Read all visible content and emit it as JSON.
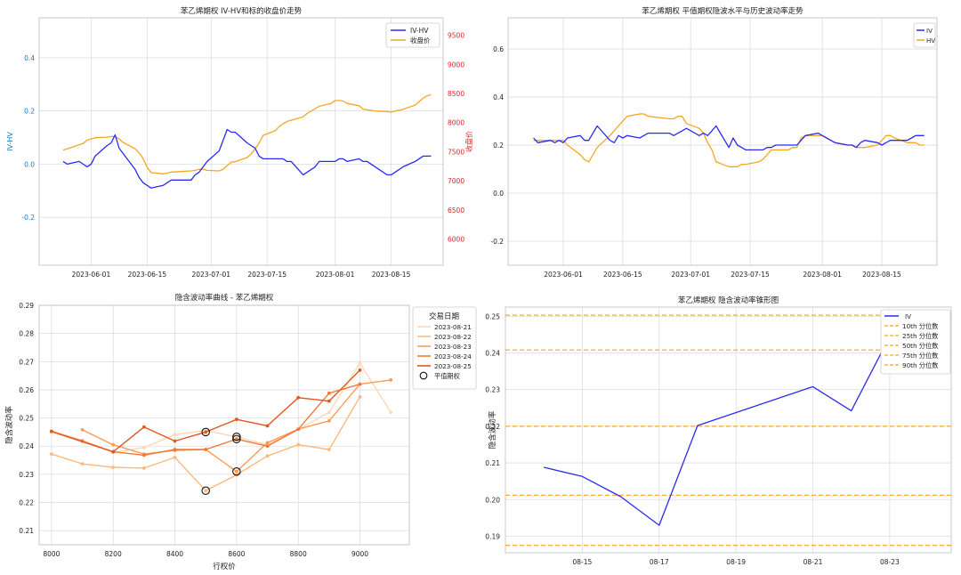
{
  "chart_data": [
    {
      "type": "line",
      "title": "苯乙烯期权 IV-HV和标的收盘价走势",
      "ylabel": "IV-HV",
      "y2label": "收盘价",
      "ylim": [
        -0.38,
        0.55
      ],
      "y2lim": [
        5550,
        9800
      ],
      "yticks": [
        "-0.2",
        "0.0",
        "0.2",
        "0.4"
      ],
      "y2ticks": [
        "6000",
        "6500",
        "7000",
        "7500",
        "8000",
        "8500",
        "9000",
        "9500"
      ],
      "xticks": [
        "2023-06-01",
        "2023-06-15",
        "2023-07-01",
        "2023-07-15",
        "2023-08-01",
        "2023-08-15"
      ],
      "grid": true,
      "legend": "top-right",
      "axis_colors": {
        "left": "#1f77b4",
        "right": "#d62728"
      },
      "series": [
        {
          "name": "IV-HV",
          "color": "#2b2bf0",
          "axis": "left",
          "x": [
            "2023-05-25",
            "2023-05-26",
            "2023-05-29",
            "2023-05-30",
            "2023-05-31",
            "2023-06-01",
            "2023-06-02",
            "2023-06-05",
            "2023-06-06",
            "2023-06-07",
            "2023-06-08",
            "2023-06-09",
            "2023-06-12",
            "2023-06-13",
            "2023-06-14",
            "2023-06-15",
            "2023-06-16",
            "2023-06-19",
            "2023-06-20",
            "2023-06-21",
            "2023-06-26",
            "2023-06-27",
            "2023-06-28",
            "2023-06-29",
            "2023-06-30",
            "2023-07-03",
            "2023-07-04",
            "2023-07-05",
            "2023-07-06",
            "2023-07-07",
            "2023-07-10",
            "2023-07-11",
            "2023-07-12",
            "2023-07-13",
            "2023-07-14",
            "2023-07-17",
            "2023-07-18",
            "2023-07-19",
            "2023-07-20",
            "2023-07-21",
            "2023-07-24",
            "2023-07-25",
            "2023-07-26",
            "2023-07-27",
            "2023-07-28",
            "2023-07-31",
            "2023-08-01",
            "2023-08-02",
            "2023-08-03",
            "2023-08-04",
            "2023-08-07",
            "2023-08-08",
            "2023-08-09",
            "2023-08-10",
            "2023-08-11",
            "2023-08-14",
            "2023-08-15",
            "2023-08-16",
            "2023-08-17",
            "2023-08-18",
            "2023-08-21",
            "2023-08-22",
            "2023-08-23",
            "2023-08-24",
            "2023-08-25"
          ],
          "values": [
            0.01,
            0.0,
            0.01,
            0.0,
            -0.01,
            0.0,
            0.03,
            0.07,
            0.08,
            0.11,
            0.06,
            0.04,
            -0.02,
            -0.05,
            -0.07,
            -0.08,
            -0.09,
            -0.08,
            -0.07,
            -0.06,
            -0.06,
            -0.04,
            -0.03,
            -0.01,
            0.01,
            0.05,
            0.09,
            0.13,
            0.12,
            0.12,
            0.08,
            0.07,
            0.06,
            0.03,
            0.02,
            0.02,
            0.02,
            0.02,
            0.01,
            0.01,
            -0.04,
            -0.03,
            -0.02,
            -0.01,
            0.01,
            0.01,
            0.01,
            0.02,
            0.02,
            0.01,
            0.02,
            0.01,
            0.01,
            0.0,
            -0.01,
            -0.04,
            -0.04,
            -0.03,
            -0.02,
            -0.01,
            0.01,
            0.02,
            0.03,
            0.03,
            0.03
          ]
        },
        {
          "name": "收盘价",
          "color": "#f5a623",
          "axis": "right",
          "x": [
            "2023-05-25",
            "2023-05-26",
            "2023-05-29",
            "2023-05-30",
            "2023-05-31",
            "2023-06-01",
            "2023-06-02",
            "2023-06-05",
            "2023-06-06",
            "2023-06-07",
            "2023-06-08",
            "2023-06-09",
            "2023-06-12",
            "2023-06-13",
            "2023-06-14",
            "2023-06-15",
            "2023-06-16",
            "2023-06-19",
            "2023-06-20",
            "2023-06-21",
            "2023-06-26",
            "2023-06-27",
            "2023-06-28",
            "2023-06-29",
            "2023-06-30",
            "2023-07-03",
            "2023-07-04",
            "2023-07-05",
            "2023-07-06",
            "2023-07-07",
            "2023-07-10",
            "2023-07-11",
            "2023-07-12",
            "2023-07-13",
            "2023-07-14",
            "2023-07-17",
            "2023-07-18",
            "2023-07-19",
            "2023-07-20",
            "2023-07-21",
            "2023-07-24",
            "2023-07-25",
            "2023-07-26",
            "2023-07-27",
            "2023-07-28",
            "2023-07-31",
            "2023-08-01",
            "2023-08-02",
            "2023-08-03",
            "2023-08-04",
            "2023-08-07",
            "2023-08-08",
            "2023-08-09",
            "2023-08-10",
            "2023-08-11",
            "2023-08-14",
            "2023-08-15",
            "2023-08-16",
            "2023-08-17",
            "2023-08-18",
            "2023-08-21",
            "2023-08-22",
            "2023-08-23",
            "2023-08-24",
            "2023-08-25"
          ],
          "values": [
            7530,
            7550,
            7620,
            7640,
            7700,
            7720,
            7740,
            7750,
            7760,
            7760,
            7720,
            7660,
            7550,
            7480,
            7380,
            7230,
            7140,
            7120,
            7130,
            7150,
            7170,
            7180,
            7200,
            7200,
            7180,
            7170,
            7200,
            7260,
            7320,
            7330,
            7400,
            7460,
            7550,
            7650,
            7780,
            7860,
            7930,
            7980,
            8020,
            8040,
            8100,
            8160,
            8200,
            8240,
            8280,
            8330,
            8380,
            8380,
            8370,
            8330,
            8290,
            8230,
            8220,
            8210,
            8200,
            8190,
            8180,
            8200,
            8210,
            8230,
            8300,
            8360,
            8420,
            8460,
            8480
          ]
        }
      ]
    },
    {
      "type": "line",
      "title": "苯乙烯期权 平值期权隐波水平与历史波动率走势",
      "ylim": [
        -0.3,
        0.73
      ],
      "yticks": [
        "-0.2",
        "0.0",
        "0.2",
        "0.4",
        "0.6"
      ],
      "xticks": [
        "2023-06-01",
        "2023-06-15",
        "2023-07-01",
        "2023-07-15",
        "2023-08-01",
        "2023-08-15"
      ],
      "grid": true,
      "legend": "top-right",
      "series": [
        {
          "name": "IV",
          "color": "#2b2bf0",
          "x": [
            "2023-05-25",
            "2023-05-26",
            "2023-05-29",
            "2023-05-30",
            "2023-05-31",
            "2023-06-01",
            "2023-06-02",
            "2023-06-05",
            "2023-06-06",
            "2023-06-07",
            "2023-06-08",
            "2023-06-09",
            "2023-06-12",
            "2023-06-13",
            "2023-06-14",
            "2023-06-15",
            "2023-06-16",
            "2023-06-19",
            "2023-06-20",
            "2023-06-21",
            "2023-06-26",
            "2023-06-27",
            "2023-06-28",
            "2023-06-29",
            "2023-06-30",
            "2023-07-03",
            "2023-07-04",
            "2023-07-05",
            "2023-07-06",
            "2023-07-07",
            "2023-07-10",
            "2023-07-11",
            "2023-07-12",
            "2023-07-13",
            "2023-07-14",
            "2023-07-17",
            "2023-07-18",
            "2023-07-19",
            "2023-07-20",
            "2023-07-21",
            "2023-07-24",
            "2023-07-25",
            "2023-07-26",
            "2023-07-27",
            "2023-07-28",
            "2023-07-31",
            "2023-08-01",
            "2023-08-02",
            "2023-08-03",
            "2023-08-04",
            "2023-08-07",
            "2023-08-08",
            "2023-08-09",
            "2023-08-10",
            "2023-08-11",
            "2023-08-14",
            "2023-08-15",
            "2023-08-16",
            "2023-08-17",
            "2023-08-18",
            "2023-08-21",
            "2023-08-22",
            "2023-08-23",
            "2023-08-24",
            "2023-08-25"
          ],
          "values": [
            0.23,
            0.21,
            0.22,
            0.21,
            0.22,
            0.21,
            0.23,
            0.24,
            0.22,
            0.22,
            0.25,
            0.28,
            0.22,
            0.21,
            0.24,
            0.23,
            0.24,
            0.23,
            0.24,
            0.25,
            0.25,
            0.24,
            0.25,
            0.26,
            0.27,
            0.24,
            0.25,
            0.24,
            0.26,
            0.28,
            0.19,
            0.23,
            0.2,
            0.19,
            0.18,
            0.18,
            0.18,
            0.19,
            0.19,
            0.2,
            0.2,
            0.2,
            0.2,
            0.22,
            0.24,
            0.25,
            0.24,
            0.23,
            0.22,
            0.21,
            0.2,
            0.2,
            0.19,
            0.21,
            0.22,
            0.21,
            0.2,
            0.21,
            0.22,
            0.22,
            0.22,
            0.23,
            0.24,
            0.24,
            0.24
          ]
        },
        {
          "name": "HV",
          "color": "#f5a623",
          "x": [
            "2023-05-25",
            "2023-05-26",
            "2023-05-29",
            "2023-05-30",
            "2023-05-31",
            "2023-06-01",
            "2023-06-02",
            "2023-06-05",
            "2023-06-06",
            "2023-06-07",
            "2023-06-08",
            "2023-06-09",
            "2023-06-12",
            "2023-06-13",
            "2023-06-14",
            "2023-06-15",
            "2023-06-16",
            "2023-06-19",
            "2023-06-20",
            "2023-06-21",
            "2023-06-26",
            "2023-06-27",
            "2023-06-28",
            "2023-06-29",
            "2023-06-30",
            "2023-07-03",
            "2023-07-04",
            "2023-07-05",
            "2023-07-06",
            "2023-07-07",
            "2023-07-10",
            "2023-07-11",
            "2023-07-12",
            "2023-07-13",
            "2023-07-14",
            "2023-07-17",
            "2023-07-18",
            "2023-07-19",
            "2023-07-20",
            "2023-07-21",
            "2023-07-24",
            "2023-07-25",
            "2023-07-26",
            "2023-07-27",
            "2023-07-28",
            "2023-07-31",
            "2023-08-01",
            "2023-08-02",
            "2023-08-03",
            "2023-08-04",
            "2023-08-07",
            "2023-08-08",
            "2023-08-09",
            "2023-08-10",
            "2023-08-11",
            "2023-08-14",
            "2023-08-15",
            "2023-08-16",
            "2023-08-17",
            "2023-08-18",
            "2023-08-21",
            "2023-08-22",
            "2023-08-23",
            "2023-08-24",
            "2023-08-25"
          ],
          "values": [
            0.22,
            0.22,
            0.22,
            0.22,
            0.22,
            0.22,
            0.2,
            0.16,
            0.14,
            0.13,
            0.16,
            0.19,
            0.24,
            0.26,
            0.28,
            0.3,
            0.32,
            0.33,
            0.33,
            0.32,
            0.31,
            0.31,
            0.32,
            0.32,
            0.29,
            0.27,
            0.25,
            0.21,
            0.18,
            0.13,
            0.11,
            0.11,
            0.11,
            0.12,
            0.12,
            0.13,
            0.14,
            0.16,
            0.18,
            0.18,
            0.18,
            0.19,
            0.19,
            0.23,
            0.24,
            0.24,
            0.24,
            0.23,
            0.22,
            0.21,
            0.2,
            0.2,
            0.19,
            0.19,
            0.19,
            0.2,
            0.22,
            0.24,
            0.24,
            0.23,
            0.21,
            0.21,
            0.21,
            0.2,
            0.2
          ]
        }
      ]
    },
    {
      "type": "line",
      "title": "隐含波动率曲线 - 苯乙烯期权",
      "xlabel": "行权价",
      "ylabel": "隐含波动率",
      "xlim": [
        7960,
        9160
      ],
      "ylim": [
        0.205,
        0.29
      ],
      "xticks": [
        "8000",
        "8200",
        "8400",
        "8600",
        "8800",
        "9000"
      ],
      "yticks": [
        "0.21",
        "0.22",
        "0.23",
        "0.24",
        "0.25",
        "0.26",
        "0.27",
        "0.28",
        "0.29"
      ],
      "grid": true,
      "legend_title": "交易日期",
      "legend": "outside-right",
      "atm_label": "平值期权",
      "series": [
        {
          "name": "2023-08-21",
          "color": "#fdd9b5",
          "x": [
            8000,
            8100,
            8200,
            8300,
            8400,
            8500,
            8600,
            8700,
            8800,
            8900,
            9000,
            9100
          ],
          "values": [
            0.2455,
            0.2421,
            0.2378,
            0.2395,
            0.2441,
            0.2455,
            0.2433,
            0.2405,
            0.246,
            0.252,
            0.2695,
            0.252
          ],
          "atm": [
            8600,
            0.2433
          ]
        },
        {
          "name": "2023-08-22",
          "color": "#fdb97d",
          "x": [
            8000,
            8100,
            8200,
            8300,
            8400,
            8500,
            8600,
            8700,
            8800,
            8900,
            9000
          ],
          "values": [
            0.2372,
            0.2337,
            0.2325,
            0.2322,
            0.236,
            0.2242,
            0.2298,
            0.2365,
            0.2405,
            0.2388,
            0.2575
          ],
          "atm": [
            8500,
            0.2242
          ]
        },
        {
          "name": "2023-08-23",
          "color": "#fd9a55",
          "x": [
            8100,
            8200,
            8300,
            8400,
            8500,
            8600,
            8700,
            8800,
            8900,
            9000,
            9100
          ],
          "values": [
            0.2458,
            0.2405,
            0.2372,
            0.2385,
            0.2388,
            0.231,
            0.2412,
            0.246,
            0.249,
            0.262,
            0.2635
          ],
          "atm": [
            8600,
            0.231
          ]
        },
        {
          "name": "2023-08-24",
          "color": "#f0783a",
          "x": [
            8000,
            8100,
            8200,
            8300,
            8400,
            8500,
            8600,
            8700,
            8800,
            8900,
            9000
          ],
          "values": [
            0.2452,
            0.2418,
            0.238,
            0.2368,
            0.2388,
            0.2388,
            0.2425,
            0.24,
            0.246,
            0.2588,
            0.262
          ],
          "atm": [
            8600,
            0.2425
          ]
        },
        {
          "name": "2023-08-25",
          "color": "#e0581e",
          "x": [
            8000,
            8200,
            8300,
            8400,
            8500,
            8600,
            8700,
            8800,
            8900,
            9000
          ],
          "values": [
            0.2452,
            0.238,
            0.2468,
            0.2418,
            0.245,
            0.2495,
            0.2472,
            0.2572,
            0.256,
            0.267
          ],
          "atm": [
            8500,
            0.245
          ]
        }
      ]
    },
    {
      "type": "line",
      "title": "苯乙烯期权 隐含波动率锥形图",
      "ylabel": "隐含波动率",
      "ylim": [
        0.1855,
        0.2525
      ],
      "yticks": [
        "0.19",
        "0.20",
        "0.21",
        "0.22",
        "0.23",
        "0.24",
        "0.25"
      ],
      "xticks": [
        "08-15",
        "08-17",
        "08-19",
        "08-21",
        "08-23"
      ],
      "grid": true,
      "legend": "top-right",
      "series": [
        {
          "name": "IV",
          "color": "#2b2bf0",
          "x": [
            "08-14",
            "08-15",
            "08-16",
            "08-17",
            "08-18",
            "08-21",
            "08-22",
            "08-23"
          ],
          "values": [
            0.2088,
            0.2063,
            0.2008,
            0.193,
            0.2202,
            0.2308,
            0.2242,
            0.2445
          ]
        }
      ],
      "percentiles": [
        {
          "name": "10th 分位数",
          "value": 0.1875,
          "color": "#f5a623"
        },
        {
          "name": "25th 分位数",
          "value": 0.2012,
          "color": "#f5a623"
        },
        {
          "name": "50th 分位数",
          "value": 0.22,
          "color": "#f5a623"
        },
        {
          "name": "75th 分位数",
          "value": 0.2408,
          "color": "#f5a623"
        },
        {
          "name": "90th 分位数",
          "value": 0.2503,
          "color": "#f5a623"
        }
      ]
    }
  ]
}
